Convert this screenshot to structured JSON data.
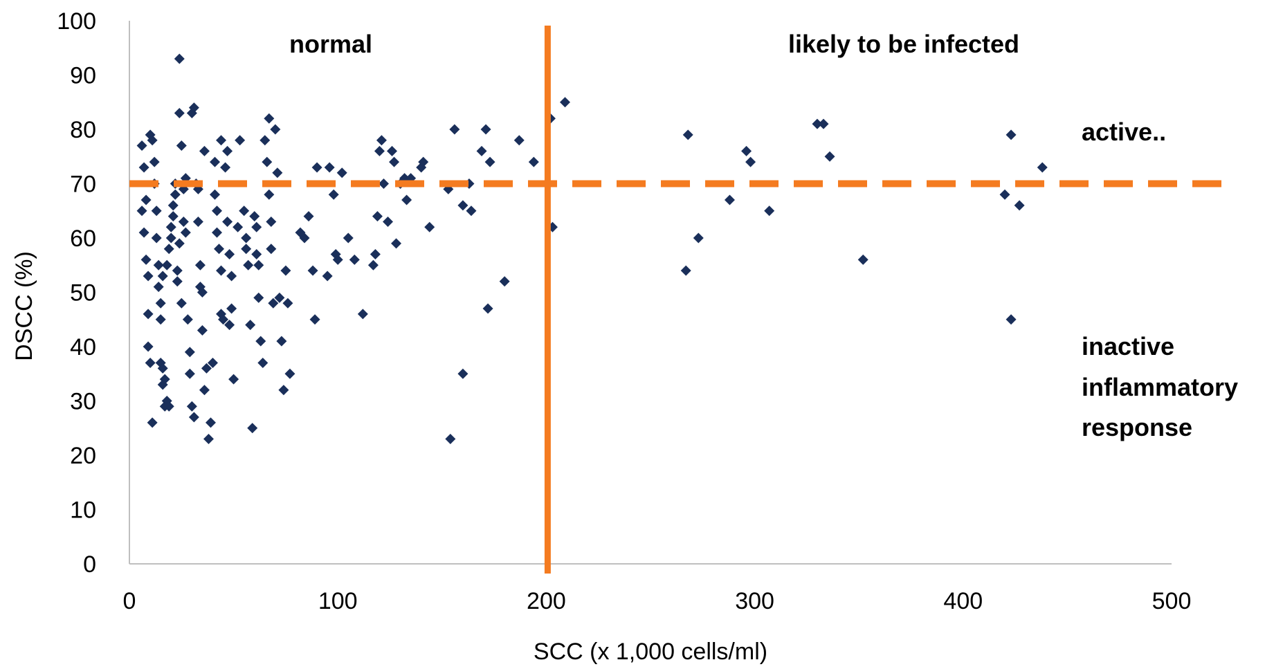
{
  "chart_data": {
    "type": "scatter",
    "xlabel": "SCC (x 1,000 cells/ml)",
    "ylabel": "DSCC (%)",
    "xlim": [
      0,
      500
    ],
    "ylim": [
      0,
      100
    ],
    "xticks": [
      "0",
      "100",
      "200",
      "300",
      "400",
      "500"
    ],
    "yticks": [
      "0",
      "10",
      "20",
      "30",
      "40",
      "50",
      "60",
      "70",
      "80",
      "90",
      "100"
    ],
    "grid": false,
    "marker_color": "#1a2f5a",
    "threshold_color": "#f47b20",
    "thresholds": {
      "vertical_x": 200,
      "horizontal_y": 70
    },
    "annotations": {
      "normal": "normal",
      "infected": "likely to be infected",
      "active": "active..",
      "inactive_line1": "inactive",
      "inactive_line2": "inflammatory",
      "inactive_line3": "response"
    },
    "points": [
      [
        6,
        77
      ],
      [
        7,
        73
      ],
      [
        8,
        67
      ],
      [
        6,
        65
      ],
      [
        7,
        61
      ],
      [
        8,
        56
      ],
      [
        9,
        53
      ],
      [
        9,
        46
      ],
      [
        10,
        37
      ],
      [
        9,
        40
      ],
      [
        10,
        79
      ],
      [
        11,
        78
      ],
      [
        12,
        74
      ],
      [
        12,
        70
      ],
      [
        13,
        65
      ],
      [
        13,
        60
      ],
      [
        14,
        55
      ],
      [
        14,
        51
      ],
      [
        15,
        48
      ],
      [
        15,
        45
      ],
      [
        11,
        26
      ],
      [
        15,
        37
      ],
      [
        16,
        36
      ],
      [
        16,
        33
      ],
      [
        17,
        34
      ],
      [
        17,
        29
      ],
      [
        18,
        30
      ],
      [
        19,
        29
      ],
      [
        16,
        53
      ],
      [
        18,
        55
      ],
      [
        19,
        58
      ],
      [
        20,
        60
      ],
      [
        20,
        62
      ],
      [
        21,
        64
      ],
      [
        21,
        66
      ],
      [
        22,
        68
      ],
      [
        22,
        70
      ],
      [
        23,
        52
      ],
      [
        23,
        54
      ],
      [
        24,
        59
      ],
      [
        25,
        48
      ],
      [
        26,
        63
      ],
      [
        26,
        69
      ],
      [
        27,
        71
      ],
      [
        27,
        61
      ],
      [
        28,
        45
      ],
      [
        29,
        39
      ],
      [
        29,
        35
      ],
      [
        30,
        29
      ],
      [
        31,
        27
      ],
      [
        24,
        93
      ],
      [
        24,
        83
      ],
      [
        30,
        83
      ],
      [
        31,
        84
      ],
      [
        25,
        77
      ],
      [
        32,
        70
      ],
      [
        33,
        69
      ],
      [
        33,
        63
      ],
      [
        34,
        55
      ],
      [
        34,
        51
      ],
      [
        35,
        50
      ],
      [
        35,
        43
      ],
      [
        36,
        32
      ],
      [
        37,
        36
      ],
      [
        38,
        23
      ],
      [
        39,
        26
      ],
      [
        40,
        37
      ],
      [
        36,
        76
      ],
      [
        41,
        74
      ],
      [
        41,
        68
      ],
      [
        42,
        65
      ],
      [
        42,
        61
      ],
      [
        43,
        58
      ],
      [
        44,
        54
      ],
      [
        44,
        46
      ],
      [
        45,
        45
      ],
      [
        46,
        73
      ],
      [
        47,
        76
      ],
      [
        47,
        63
      ],
      [
        48,
        57
      ],
      [
        48,
        44
      ],
      [
        49,
        53
      ],
      [
        49,
        47
      ],
      [
        50,
        34
      ],
      [
        44,
        78
      ],
      [
        52,
        62
      ],
      [
        53,
        78
      ],
      [
        55,
        65
      ],
      [
        56,
        60
      ],
      [
        56,
        58
      ],
      [
        57,
        55
      ],
      [
        58,
        44
      ],
      [
        59,
        25
      ],
      [
        60,
        64
      ],
      [
        61,
        62
      ],
      [
        61,
        57
      ],
      [
        62,
        55
      ],
      [
        62,
        49
      ],
      [
        63,
        41
      ],
      [
        64,
        37
      ],
      [
        65,
        78
      ],
      [
        66,
        74
      ],
      [
        67,
        82
      ],
      [
        67,
        68
      ],
      [
        68,
        63
      ],
      [
        68,
        58
      ],
      [
        69,
        48
      ],
      [
        70,
        80
      ],
      [
        71,
        72
      ],
      [
        72,
        49
      ],
      [
        73,
        41
      ],
      [
        74,
        32
      ],
      [
        75,
        54
      ],
      [
        76,
        48
      ],
      [
        77,
        35
      ],
      [
        82,
        61
      ],
      [
        84,
        60
      ],
      [
        86,
        64
      ],
      [
        88,
        54
      ],
      [
        89,
        45
      ],
      [
        90,
        73
      ],
      [
        95,
        53
      ],
      [
        96,
        73
      ],
      [
        98,
        68
      ],
      [
        99,
        57
      ],
      [
        100,
        56
      ],
      [
        102,
        72
      ],
      [
        105,
        60
      ],
      [
        108,
        56
      ],
      [
        112,
        46
      ],
      [
        117,
        55
      ],
      [
        118,
        57
      ],
      [
        119,
        64
      ],
      [
        120,
        76
      ],
      [
        121,
        78
      ],
      [
        122,
        70
      ],
      [
        124,
        63
      ],
      [
        126,
        76
      ],
      [
        127,
        74
      ],
      [
        128,
        59
      ],
      [
        130,
        70
      ],
      [
        132,
        71
      ],
      [
        133,
        67
      ],
      [
        135,
        71
      ],
      [
        140,
        73
      ],
      [
        141,
        74
      ],
      [
        144,
        62
      ],
      [
        153,
        69
      ],
      [
        154,
        23
      ],
      [
        156,
        80
      ],
      [
        160,
        35
      ],
      [
        160,
        66
      ],
      [
        163,
        70
      ],
      [
        164,
        65
      ],
      [
        169,
        76
      ],
      [
        171,
        80
      ],
      [
        172,
        47
      ],
      [
        173,
        74
      ],
      [
        180,
        52
      ],
      [
        187,
        78
      ],
      [
        194,
        74
      ],
      [
        202,
        82
      ],
      [
        203,
        62
      ],
      [
        209,
        85
      ],
      [
        267,
        54
      ],
      [
        268,
        79
      ],
      [
        273,
        60
      ],
      [
        288,
        67
      ],
      [
        296,
        76
      ],
      [
        298,
        74
      ],
      [
        307,
        65
      ],
      [
        330,
        81
      ],
      [
        333,
        81
      ],
      [
        336,
        75
      ],
      [
        352,
        56
      ],
      [
        420,
        68
      ],
      [
        423,
        45
      ],
      [
        423,
        79
      ],
      [
        427,
        66
      ],
      [
        438,
        73
      ]
    ]
  }
}
